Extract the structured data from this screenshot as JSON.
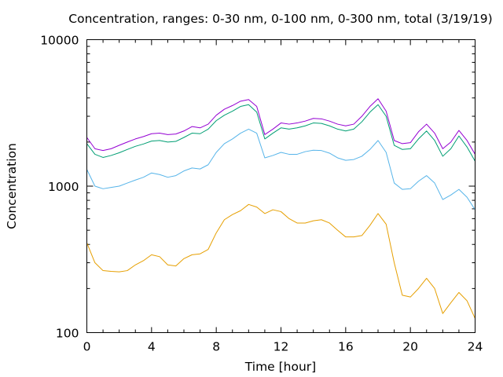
{
  "chart_data": {
    "type": "line",
    "title": "Concentration, ranges: 0-30 nm, 0-100 nm, 0-300 nm, total (3/19/19)",
    "xlabel": "Time [hour]",
    "ylabel": "Concentration",
    "xlim": [
      0,
      24
    ],
    "ylim": [
      100,
      10000
    ],
    "yscale": "log",
    "grid": false,
    "legend": "none",
    "xticks": [
      "0",
      "4",
      "8",
      "12",
      "16",
      "20",
      "24"
    ],
    "yticks": [
      "100",
      "1000",
      "10000"
    ],
    "x": [
      0,
      0.5,
      1,
      1.5,
      2,
      2.5,
      3,
      3.5,
      4,
      4.5,
      5,
      5.5,
      6,
      6.5,
      7,
      7.5,
      8,
      8.5,
      9,
      9.5,
      10,
      10.5,
      11,
      11.5,
      12,
      12.5,
      13,
      13.5,
      14,
      14.5,
      15,
      15.5,
      16,
      16.5,
      17,
      17.5,
      18,
      18.5,
      19,
      19.5,
      20,
      20.5,
      21,
      21.5,
      22,
      22.5,
      23,
      23.5,
      24
    ],
    "series": [
      {
        "color": "#e69f00",
        "values": [
          410,
          300,
          265,
          262,
          260,
          265,
          290,
          310,
          340,
          330,
          290,
          285,
          320,
          340,
          345,
          370,
          480,
          590,
          640,
          680,
          750,
          720,
          650,
          690,
          670,
          600,
          560,
          560,
          580,
          590,
          560,
          500,
          450,
          450,
          460,
          540,
          650,
          550,
          300,
          180,
          175,
          200,
          235,
          200,
          135,
          160,
          188,
          165,
          125
        ]
      },
      {
        "color": "#56b4e9",
        "values": [
          1300,
          1000,
          960,
          980,
          1000,
          1050,
          1100,
          1150,
          1230,
          1200,
          1150,
          1180,
          1270,
          1330,
          1310,
          1400,
          1700,
          1950,
          2100,
          2300,
          2450,
          2300,
          1560,
          1620,
          1700,
          1650,
          1650,
          1720,
          1760,
          1750,
          1680,
          1560,
          1500,
          1520,
          1600,
          1780,
          2050,
          1700,
          1050,
          950,
          960,
          1080,
          1180,
          1050,
          810,
          870,
          950,
          840,
          690
        ]
      },
      {
        "color": "#009e73",
        "values": [
          1950,
          1650,
          1570,
          1620,
          1690,
          1780,
          1870,
          1940,
          2030,
          2050,
          2000,
          2020,
          2150,
          2300,
          2280,
          2450,
          2800,
          3050,
          3250,
          3500,
          3600,
          3200,
          2100,
          2300,
          2500,
          2450,
          2500,
          2580,
          2700,
          2680,
          2580,
          2450,
          2380,
          2450,
          2750,
          3200,
          3600,
          3000,
          1900,
          1780,
          1800,
          2100,
          2380,
          2050,
          1600,
          1800,
          2200,
          1850,
          1480
        ]
      },
      {
        "color": "#9400d3",
        "values": [
          2150,
          1800,
          1750,
          1800,
          1900,
          2000,
          2100,
          2180,
          2280,
          2300,
          2250,
          2270,
          2380,
          2550,
          2500,
          2650,
          3050,
          3350,
          3550,
          3800,
          3900,
          3500,
          2250,
          2450,
          2700,
          2650,
          2700,
          2780,
          2900,
          2880,
          2780,
          2650,
          2580,
          2650,
          3000,
          3500,
          3950,
          3250,
          2050,
          1950,
          1980,
          2350,
          2650,
          2300,
          1800,
          2000,
          2400,
          2050,
          1650
        ]
      }
    ]
  }
}
